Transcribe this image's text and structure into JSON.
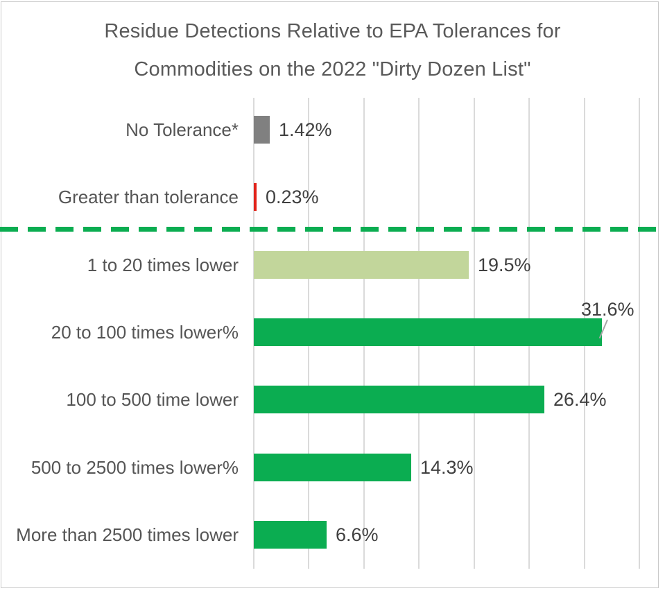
{
  "title": "Residue Detections Relative to EPA Tolerances for Commodities on the 2022 \"Dirty Dozen List\"",
  "chart_data": {
    "type": "bar",
    "orientation": "horizontal",
    "title": "Residue Detections Relative to EPA Tolerances for Commodities on the 2022 \"Dirty Dozen List\"",
    "categories": [
      "No Tolerance*",
      "Greater than tolerance",
      "1 to 20 times lower",
      "20 to 100 times lower%",
      "100 to 500 time lower",
      "500 to 2500 times lower%",
      "More than 2500 times lower"
    ],
    "values": [
      1.42,
      0.23,
      19.5,
      31.6,
      26.4,
      14.3,
      6.6
    ],
    "value_labels": [
      "1.42%",
      "0.23%",
      "19.5%",
      "31.6%",
      "26.4%",
      "14.3%",
      "6.6%"
    ],
    "bar_colors": [
      "#808080",
      "#e2231a",
      "#c2d69b",
      "#0bad51",
      "#0bad51",
      "#0bad51",
      "#0bad51"
    ],
    "xlabel": "",
    "ylabel": "",
    "xlim": [
      0,
      36
    ],
    "grid": true,
    "gridline_interval": 5,
    "legend": "none",
    "callout_index": 3,
    "threshold_line": {
      "description": "dashed green line separating over/at-tolerance rows from below-tolerance rows",
      "after_category_index": 1,
      "style": "dashed",
      "color": "#0bad51"
    },
    "colors": {
      "green": "#0bad51",
      "light_green": "#c2d69b",
      "gray": "#808080",
      "red": "#e2231a",
      "gridline": "#dadada",
      "title_text": "#595959",
      "category_text": "#555555",
      "value_text": "#3f3f3f",
      "leader_line": "#a6a6a6",
      "frame_border": "#c9c9c9",
      "background": "#ffffff"
    }
  }
}
